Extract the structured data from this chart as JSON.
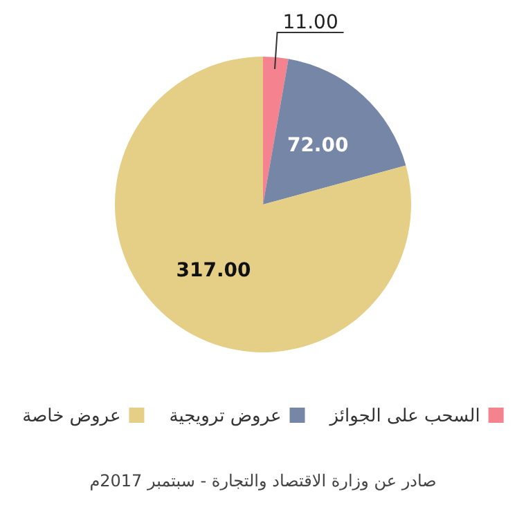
{
  "chart_data": {
    "type": "pie",
    "categories": [
      "السحب على الجوائز",
      "عروض ترويجية",
      "عروض خاصة"
    ],
    "values": [
      11,
      72,
      317
    ],
    "value_labels": [
      "11.00",
      "72.00",
      "317.00"
    ],
    "colors": [
      "#f5828f",
      "#7586a6",
      "#e5cf87"
    ],
    "legend": "bottom",
    "annotations": [
      "صادر عن وزارة الاقتصاد والتجارة - سبتمبر 2017م"
    ]
  }
}
